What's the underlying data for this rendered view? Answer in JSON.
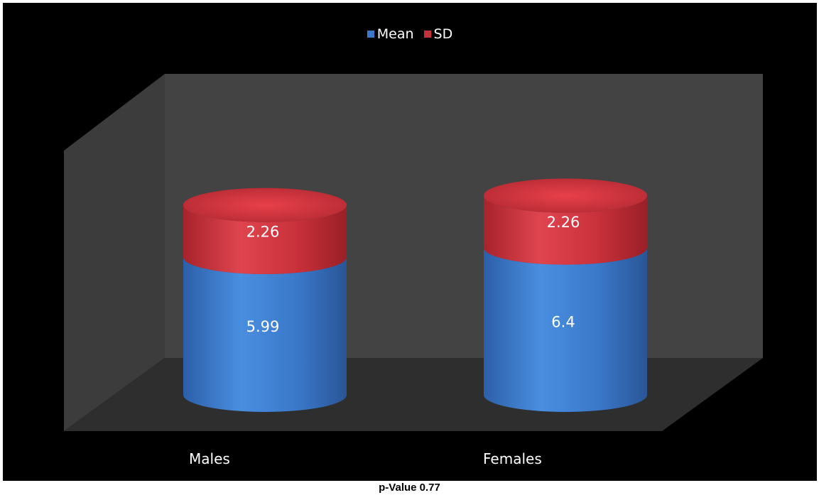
{
  "chart_data": {
    "type": "bar",
    "stacked": true,
    "style": "3d-cylinder",
    "categories": [
      "Males",
      "Females"
    ],
    "series": [
      {
        "name": "Mean",
        "values": [
          5.99,
          6.4
        ],
        "color": "#3a78c9"
      },
      {
        "name": "SD",
        "values": [
          2.26,
          2.26
        ],
        "color": "#c8303a"
      }
    ],
    "data_labels": [
      [
        "5.99",
        "6.4"
      ],
      [
        "2.26",
        "2.26"
      ]
    ],
    "legend_position": "top-center",
    "background": "#000000",
    "grid": false
  },
  "caption": "p-Value 0.77"
}
